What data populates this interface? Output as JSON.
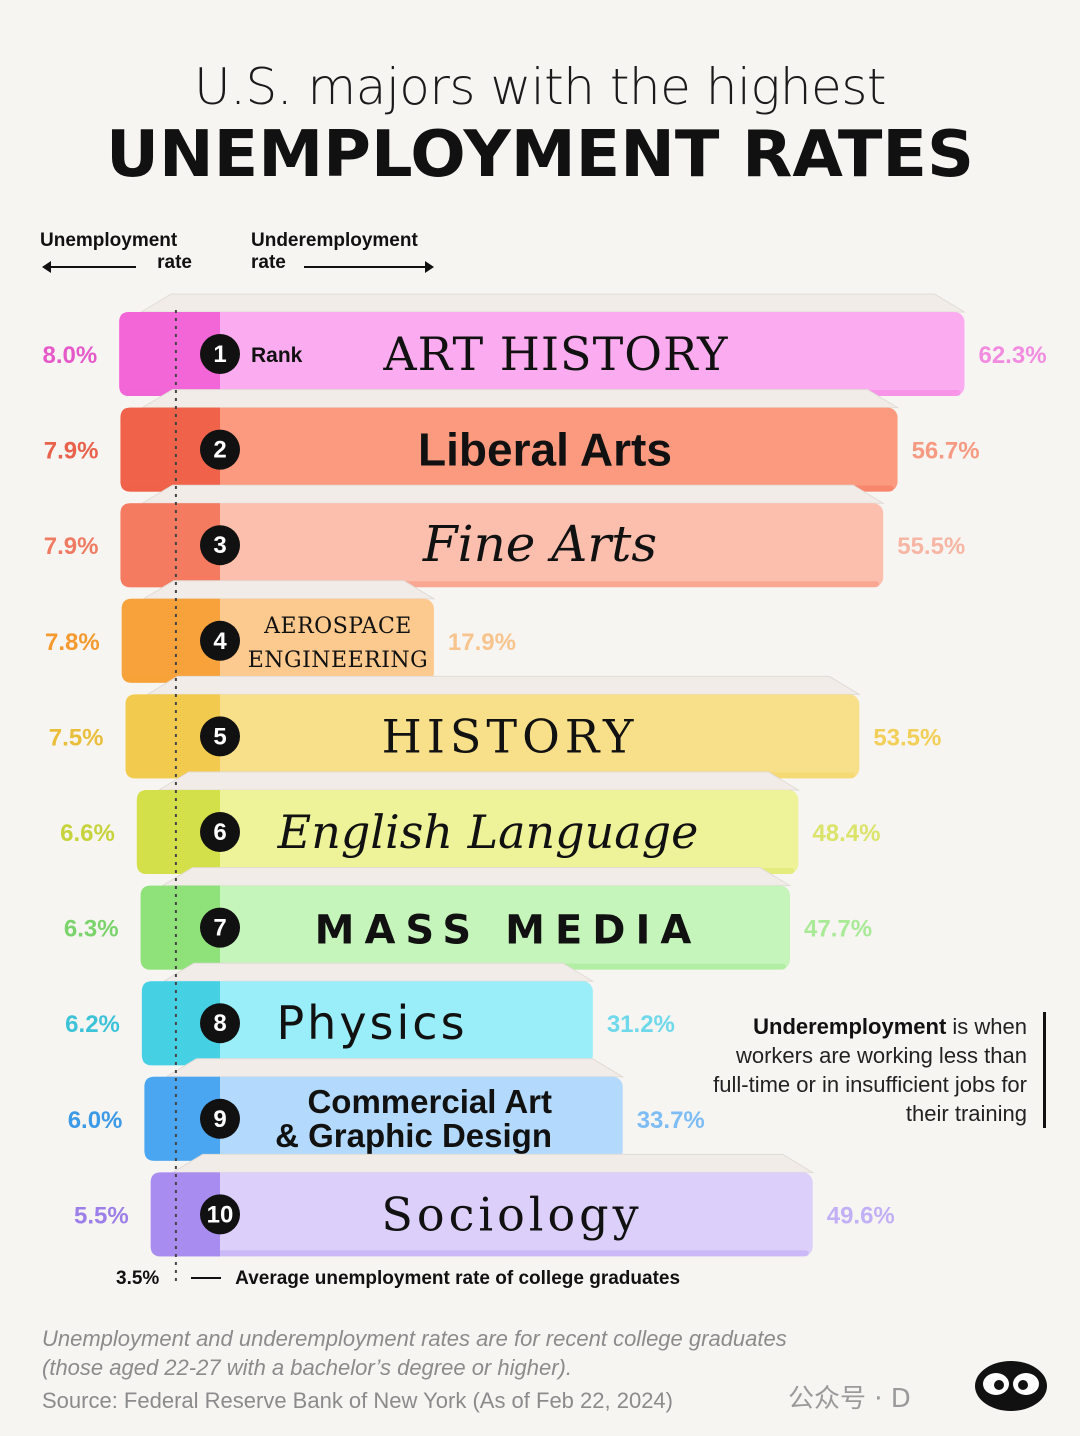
{
  "title": {
    "line1": "U.S. majors with the highest",
    "line2": "UNEMPLOYMENT RATES"
  },
  "legend": {
    "left_label_1": "Unemployment",
    "left_label_2": "rate",
    "right_label_1": "Underemployment",
    "right_label_2": "rate",
    "rank_label": "Rank"
  },
  "chart_data": {
    "type": "bar",
    "title": "U.S. majors with the highest UNEMPLOYMENT RATES",
    "categories": [
      "ART HISTORY",
      "Liberal Arts",
      "Fine Arts",
      "AEROSPACE ENGINEERING",
      "HISTORY",
      "English Language",
      "MASS MEDIA",
      "Physics",
      "Commercial Art & Graphic Design",
      "Sociology"
    ],
    "ranks": [
      "1",
      "2",
      "3",
      "4",
      "5",
      "6",
      "7",
      "8",
      "9",
      "10"
    ],
    "series": [
      {
        "name": "Unemployment rate",
        "values": [
          8.0,
          7.9,
          7.9,
          7.8,
          7.5,
          6.6,
          6.3,
          6.2,
          6.0,
          5.5
        ],
        "labels": [
          "8.0%",
          "7.9%",
          "7.9%",
          "7.8%",
          "7.5%",
          "6.6%",
          "6.3%",
          "6.2%",
          "6.0%",
          "5.5%"
        ]
      },
      {
        "name": "Underemployment rate",
        "values": [
          62.3,
          56.7,
          55.5,
          17.9,
          53.5,
          48.4,
          47.7,
          31.2,
          33.7,
          49.6
        ],
        "labels": [
          "62.3%",
          "56.7%",
          "55.5%",
          "17.9%",
          "53.5%",
          "48.4%",
          "47.7%",
          "31.2%",
          "33.7%",
          "49.6%"
        ]
      }
    ],
    "reference": {
      "value": 3.5,
      "label": "3.5%",
      "text": "Average unemployment rate of college graduates"
    },
    "colors": {
      "dark": [
        "#f266d8",
        "#f0624a",
        "#f47a60",
        "#f7a23a",
        "#f2cb4e",
        "#d4e04a",
        "#8fe27a",
        "#46d0e4",
        "#4aa6f0",
        "#a98cf0"
      ],
      "light": [
        "#fbacf0",
        "#fb9a7e",
        "#fcbfae",
        "#fcc98e",
        "#f8e08a",
        "#eef39a",
        "#c6f5bc",
        "#9aeefa",
        "#b3dafc",
        "#dccffa"
      ],
      "label": [
        "#e659c9",
        "#e8624c",
        "#ef7b63",
        "#f59a2f",
        "#e9be3b",
        "#c6d33c",
        "#7bd46b",
        "#3cc3d8",
        "#3c9ae6",
        "#9c7fe8"
      ],
      "under_label": [
        "#f28ce0",
        "#f69a82",
        "#f7b6a4",
        "#f8c48e",
        "#f2cf58",
        "#dbe46a",
        "#a9ea96",
        "#6fd8ea",
        "#7dbcf4",
        "#c2b0f6"
      ]
    }
  },
  "note": {
    "bold": "Underemployment",
    "rest": " is when workers are working less than full-time or in insufficient jobs for their training"
  },
  "footnote": "Unemployment and underemployment rates are for recent college graduates (those aged 22-27 with a bachelor’s degree or higher).",
  "source": "Source: Federal Reserve Bank of New York (As of Feb 22, 2024)",
  "watermark": "公众号 · D"
}
